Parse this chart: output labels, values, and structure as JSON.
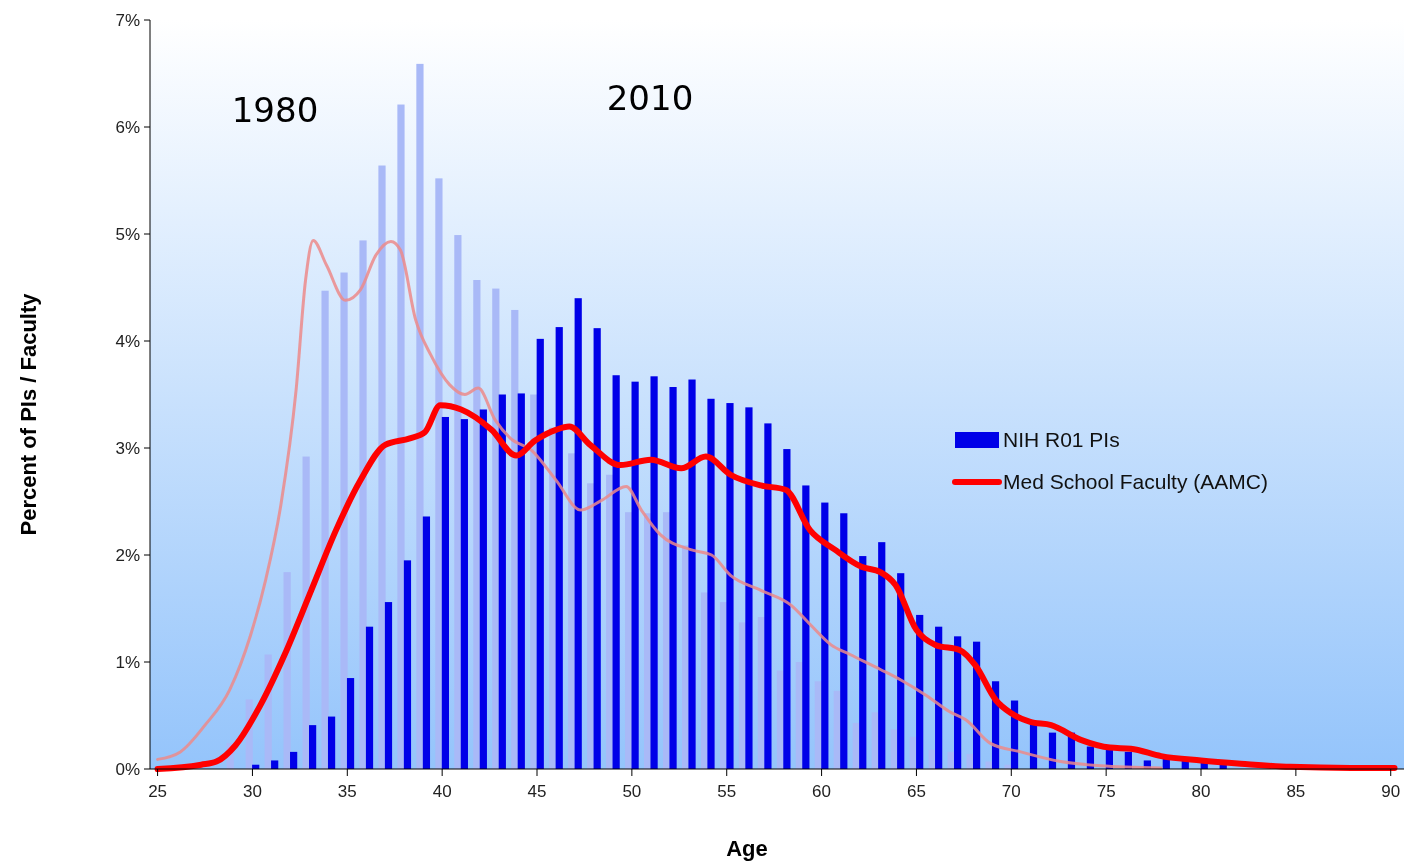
{
  "chart_data": {
    "type": "bar",
    "xlabel": "Age",
    "ylabel": "Percent of PIs / Faculty",
    "xlim": [
      24.6,
      90.7
    ],
    "xticks": [
      25,
      30,
      35,
      40,
      45,
      50,
      55,
      60,
      65,
      70,
      75,
      80,
      85,
      90
    ],
    "ylim": [
      0,
      7
    ],
    "yticks": [
      {
        "value": 0,
        "label": "0%"
      },
      {
        "value": 1,
        "label": "1%"
      },
      {
        "value": 2,
        "label": "2%"
      },
      {
        "value": 3,
        "label": "3%"
      },
      {
        "value": 4,
        "label": "4%"
      },
      {
        "value": 5,
        "label": "5%"
      },
      {
        "value": 6,
        "label": "6%"
      },
      {
        "value": 7,
        "label": "7%"
      }
    ],
    "grid": false,
    "legend": "right",
    "marker": "none",
    "line_style": "solid",
    "annotations": [
      "1980",
      "2010"
    ],
    "series": [
      {
        "color": "#a9b9f7",
        "x": [
          27,
          28,
          29,
          30,
          31,
          32,
          33,
          34,
          35,
          36,
          37,
          38,
          39,
          40,
          41,
          42,
          43,
          44,
          45,
          46,
          47,
          48,
          49,
          50,
          51,
          52,
          53,
          54,
          55,
          56,
          57,
          58,
          59,
          60,
          61,
          62,
          63,
          64,
          65,
          66,
          67,
          68,
          69,
          70,
          74,
          75,
          76,
          77,
          78,
          79,
          80,
          81
        ],
        "values": [
          0,
          0,
          0.24,
          0.65,
          1.07,
          1.84,
          2.92,
          4.47,
          4.64,
          4.94,
          5.64,
          6.21,
          6.59,
          5.52,
          4.99,
          4.57,
          4.49,
          4.29,
          3.5,
          3.19,
          2.95,
          2.67,
          2.75,
          2.4,
          2.39,
          2.4,
          2.09,
          1.65,
          1.56,
          1.37,
          1.42,
          0.92,
          1.0,
          0.82,
          0.73,
          0.43,
          0.53,
          0.37,
          0.3,
          0.18,
          0.16,
          0.14,
          0.07,
          0.04,
          0,
          0,
          0,
          0,
          0,
          0,
          0,
          0
        ]
      },
      {
        "name": "NIH R01 PIs",
        "color": "#0000e8",
        "x": [
          27,
          28,
          30,
          31,
          32,
          33,
          34,
          35,
          36,
          37,
          38,
          39,
          40,
          41,
          42,
          43,
          44,
          45,
          46,
          47,
          48,
          49,
          50,
          51,
          52,
          53,
          54,
          55,
          56,
          57,
          58,
          59,
          60,
          61,
          62,
          63,
          64,
          65,
          66,
          67,
          68,
          69,
          70,
          71,
          72,
          73,
          74,
          75,
          76,
          77,
          78,
          79,
          80,
          81
        ],
        "values": [
          0,
          0,
          0.04,
          0.08,
          0.16,
          0.41,
          0.49,
          0.85,
          1.33,
          1.56,
          1.95,
          2.36,
          3.29,
          3.27,
          3.36,
          3.5,
          3.51,
          4.02,
          4.13,
          4.4,
          4.12,
          3.68,
          3.62,
          3.67,
          3.57,
          3.64,
          3.46,
          3.42,
          3.38,
          3.23,
          2.99,
          2.65,
          2.49,
          2.39,
          1.99,
          2.12,
          1.83,
          1.44,
          1.33,
          1.24,
          1.19,
          0.82,
          0.64,
          0.43,
          0.34,
          0.34,
          0.21,
          0.19,
          0.16,
          0.08,
          0.11,
          0.09,
          0.07,
          0.05
        ]
      },
      {
        "type": "line",
        "color": "#ec8a8a",
        "x": [
          25,
          26.2,
          27.5,
          28.8,
          29.9,
          30.7,
          31.5,
          32.3,
          32.8,
          33.2,
          33.9,
          34.9,
          35.7,
          36.5,
          37.3,
          37.8,
          38.6,
          39.4,
          40.4,
          41.2,
          41.9,
          42.8,
          43.6,
          44.7,
          46,
          47.3,
          48.4,
          49.7,
          50.5,
          51.5,
          53.1,
          54.2,
          55.2,
          56.8,
          58.4,
          59.4,
          60.5,
          61.5,
          63.1,
          64.2,
          65.5,
          66.8,
          67.6,
          68.9,
          70.5,
          72.6,
          74.7,
          77.9
        ],
        "values": [
          0.09,
          0.16,
          0.41,
          0.74,
          1.25,
          1.77,
          2.47,
          3.54,
          4.57,
          4.94,
          4.71,
          4.38,
          4.48,
          4.8,
          4.93,
          4.85,
          4.2,
          3.87,
          3.59,
          3.5,
          3.56,
          3.26,
          3.09,
          2.98,
          2.7,
          2.42,
          2.51,
          2.64,
          2.42,
          2.19,
          2.05,
          2.0,
          1.81,
          1.67,
          1.53,
          1.35,
          1.16,
          1.07,
          0.93,
          0.83,
          0.69,
          0.53,
          0.46,
          0.24,
          0.16,
          0.07,
          0.03,
          0.01
        ]
      },
      {
        "type": "line",
        "name": "Med School Faculty (AAMC)",
        "color": "#ff0000",
        "x": [
          25,
          27.3,
          28.1,
          29.1,
          30.4,
          31.7,
          33.1,
          34.4,
          35.7,
          37,
          38.3,
          39.1,
          39.9,
          41,
          42.6,
          43.9,
          44.9,
          46,
          46.7,
          47.8,
          49.4,
          51,
          52.6,
          53.9,
          55.2,
          56.8,
          58.1,
          59.4,
          60.7,
          62.1,
          63.1,
          63.9,
          65,
          66,
          67.3,
          68.1,
          69.2,
          70,
          71,
          72.1,
          73.7,
          75.2,
          76.3,
          77.9,
          80,
          82.1,
          84.7,
          87.9,
          90.2
        ],
        "values": [
          0,
          0.04,
          0.07,
          0.22,
          0.59,
          1.07,
          1.67,
          2.23,
          2.7,
          3.03,
          3.09,
          3.15,
          3.4,
          3.36,
          3.17,
          2.93,
          3.07,
          3.17,
          3.2,
          3.03,
          2.84,
          2.89,
          2.81,
          2.92,
          2.75,
          2.65,
          2.61,
          2.23,
          2.05,
          1.89,
          1.84,
          1.72,
          1.3,
          1.16,
          1.11,
          0.97,
          0.64,
          0.52,
          0.44,
          0.41,
          0.27,
          0.2,
          0.19,
          0.12,
          0.08,
          0.05,
          0.02,
          0.01,
          0.01
        ]
      }
    ]
  }
}
